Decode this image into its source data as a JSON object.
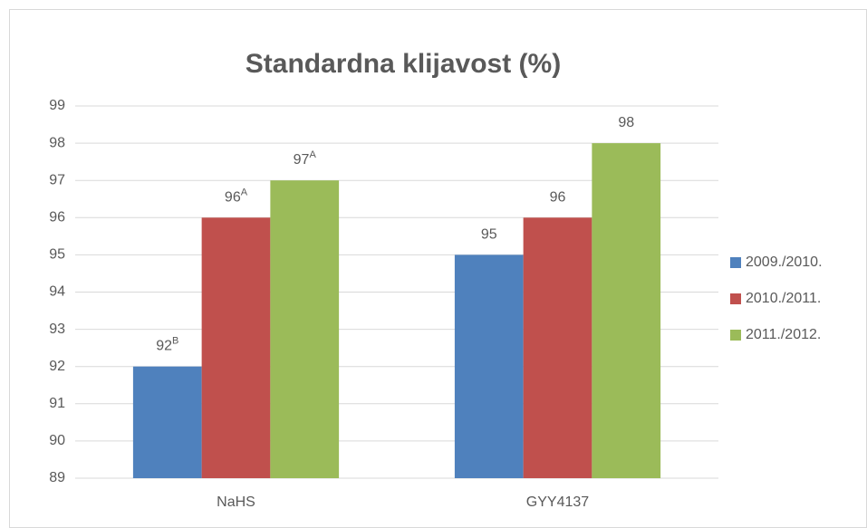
{
  "chart_data": {
    "type": "bar",
    "title": "Standardna klijavost (%)",
    "categories": [
      "NaHS",
      "GYY4137"
    ],
    "series": [
      {
        "name": "2009./2010.",
        "color": "#4f81bd",
        "values": [
          92,
          95
        ],
        "superscripts": [
          "B",
          null
        ]
      },
      {
        "name": "2010./2011.",
        "color": "#c0504d",
        "values": [
          96,
          96
        ],
        "superscripts": [
          "A",
          null
        ]
      },
      {
        "name": "2011./2012.",
        "color": "#9bbb59",
        "values": [
          97,
          98
        ],
        "superscripts": [
          "A",
          null
        ]
      }
    ],
    "ylim": [
      89,
      99
    ],
    "yticks": [
      89,
      90,
      91,
      92,
      93,
      94,
      95,
      96,
      97,
      98,
      99
    ],
    "grid": true,
    "legend": "right"
  }
}
